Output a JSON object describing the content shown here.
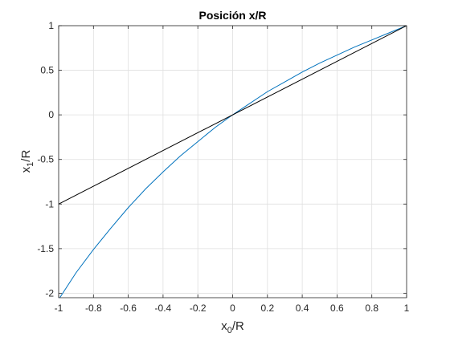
{
  "chart_data": {
    "type": "line",
    "title": "Posición x/R",
    "xlabel": {
      "base": "x",
      "sub": "0",
      "rest": "/R"
    },
    "ylabel": {
      "base": "x",
      "sub": "1",
      "rest": "/R"
    },
    "xlim": [
      -1,
      1
    ],
    "ylim": [
      -2.05,
      1
    ],
    "xticks": [
      -1,
      -0.8,
      -0.6,
      -0.4,
      -0.2,
      0,
      0.2,
      0.4,
      0.6,
      0.8,
      1
    ],
    "xtick_labels": [
      "-1",
      "-0.8",
      "-0.6",
      "-0.4",
      "-0.2",
      "0",
      "0.2",
      "0.4",
      "0.6",
      "0.8",
      "1"
    ],
    "yticks": [
      -2,
      -1.5,
      -1,
      -0.5,
      0,
      0.5,
      1
    ],
    "ytick_labels": [
      "-2",
      "-1.5",
      "-1",
      "-0.5",
      "0",
      "0.5",
      "1"
    ],
    "grid": true,
    "series": [
      {
        "color": "#0072BD",
        "x": [
          -1,
          -0.9,
          -0.8,
          -0.7,
          -0.6,
          -0.5,
          -0.4,
          -0.3,
          -0.2,
          -0.1,
          0,
          0.1,
          0.2,
          0.3,
          0.4,
          0.5,
          0.6,
          0.7,
          0.8,
          0.9,
          1
        ],
        "y": [
          -2.07,
          -1.77,
          -1.51,
          -1.27,
          -1.04,
          -0.83,
          -0.64,
          -0.46,
          -0.3,
          -0.14,
          0,
          0.13,
          0.26,
          0.37,
          0.48,
          0.58,
          0.67,
          0.76,
          0.84,
          0.92,
          1
        ]
      },
      {
        "color": "#000000",
        "x": [
          -1,
          1
        ],
        "y": [
          -1,
          1
        ]
      }
    ]
  }
}
